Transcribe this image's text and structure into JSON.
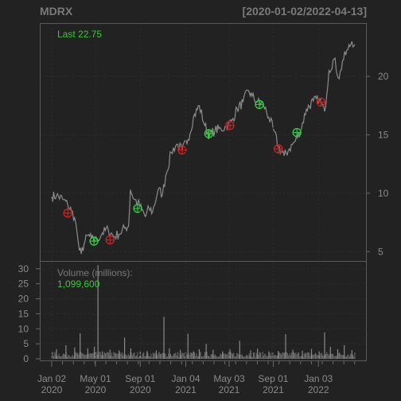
{
  "chart_data": {
    "type": "line",
    "symbol": "MDRX",
    "date_range": "[2020-01-02/2022-04-13]",
    "last_label": "Last 22.75",
    "volume_label": "Volume (millions):",
    "volume_last": "1,099,600",
    "price_axis": {
      "ticks": [
        5,
        10,
        15,
        20
      ],
      "range": [
        4.2,
        24.5
      ]
    },
    "volume_axis": {
      "ticks": [
        0,
        5,
        10,
        15,
        20,
        25,
        30
      ],
      "range": [
        0,
        31
      ]
    },
    "x_axis": {
      "start": "2020-01-02",
      "end": "2022-04-13",
      "ticks": [
        {
          "date": "2020-01-02",
          "line1": "Jan 02",
          "line2": "2020"
        },
        {
          "date": "2020-05-01",
          "line1": "May 01",
          "line2": "2020"
        },
        {
          "date": "2020-09-01",
          "line1": "Sep 01",
          "line2": "2020"
        },
        {
          "date": "2021-01-04",
          "line1": "Jan 04",
          "line2": "2021"
        },
        {
          "date": "2021-05-03",
          "line1": "May 03",
          "line2": "2021"
        },
        {
          "date": "2021-09-01",
          "line1": "Sep 01",
          "line2": "2021"
        },
        {
          "date": "2022-01-03",
          "line1": "Jan 03",
          "line2": "2022"
        }
      ]
    },
    "price_series": [
      [
        "2020-01-02",
        9.7
      ],
      [
        "2020-01-15",
        9.8
      ],
      [
        "2020-02-01",
        9.5
      ],
      [
        "2020-02-15",
        9.0
      ],
      [
        "2020-02-25",
        8.5
      ],
      [
        "2020-03-05",
        7.9
      ],
      [
        "2020-03-12",
        6.5
      ],
      [
        "2020-03-18",
        5.1
      ],
      [
        "2020-03-23",
        4.8
      ],
      [
        "2020-03-31",
        5.7
      ],
      [
        "2020-04-10",
        6.4
      ],
      [
        "2020-04-20",
        6.1
      ],
      [
        "2020-05-05",
        6.0
      ],
      [
        "2020-05-20",
        6.6
      ],
      [
        "2020-06-05",
        6.9
      ],
      [
        "2020-06-20",
        6.3
      ],
      [
        "2020-07-05",
        6.5
      ],
      [
        "2020-07-20",
        7.0
      ],
      [
        "2020-07-31",
        7.2
      ],
      [
        "2020-08-05",
        10.3
      ],
      [
        "2020-08-15",
        9.5
      ],
      [
        "2020-08-25",
        9.2
      ],
      [
        "2020-09-05",
        8.6
      ],
      [
        "2020-09-15",
        8.0
      ],
      [
        "2020-09-25",
        8.7
      ],
      [
        "2020-10-05",
        8.4
      ],
      [
        "2020-10-20",
        10.3
      ],
      [
        "2020-11-01",
        9.9
      ],
      [
        "2020-11-10",
        11.5
      ],
      [
        "2020-11-25",
        13.5
      ],
      [
        "2020-12-10",
        14.2
      ],
      [
        "2020-12-25",
        13.7
      ],
      [
        "2021-01-10",
        14.6
      ],
      [
        "2021-01-25",
        16.5
      ],
      [
        "2021-02-10",
        17.5
      ],
      [
        "2021-02-25",
        15.8
      ],
      [
        "2021-03-10",
        14.9
      ],
      [
        "2021-03-25",
        15.4
      ],
      [
        "2021-04-10",
        15.5
      ],
      [
        "2021-04-25",
        15.7
      ],
      [
        "2021-05-10",
        16.2
      ],
      [
        "2021-05-25",
        17.2
      ],
      [
        "2021-06-10",
        17.8
      ],
      [
        "2021-06-25",
        18.8
      ],
      [
        "2021-07-05",
        18.3
      ],
      [
        "2021-07-20",
        17.8
      ],
      [
        "2021-08-05",
        17.6
      ],
      [
        "2021-08-20",
        16.5
      ],
      [
        "2021-09-01",
        15.5
      ],
      [
        "2021-09-15",
        14.0
      ],
      [
        "2021-10-01",
        13.2
      ],
      [
        "2021-10-15",
        13.8
      ],
      [
        "2021-11-01",
        14.5
      ],
      [
        "2021-11-15",
        15.4
      ],
      [
        "2021-12-01",
        17.2
      ],
      [
        "2021-12-20",
        17.9
      ],
      [
        "2022-01-05",
        18.0
      ],
      [
        "2022-01-20",
        17.0
      ],
      [
        "2022-02-01",
        20.5
      ],
      [
        "2022-02-15",
        21.5
      ],
      [
        "2022-03-01",
        19.8
      ],
      [
        "2022-03-10",
        21.3
      ],
      [
        "2022-03-25",
        22.3
      ],
      [
        "2022-04-05",
        23.0
      ],
      [
        "2022-04-13",
        22.75
      ]
    ],
    "trade_markers": [
      {
        "date": "2020-02-15",
        "price": 8.3,
        "type": "sell"
      },
      {
        "date": "2020-04-27",
        "price": 5.9,
        "type": "buy"
      },
      {
        "date": "2020-06-10",
        "price": 6.0,
        "type": "sell"
      },
      {
        "date": "2020-08-25",
        "price": 8.7,
        "type": "buy"
      },
      {
        "date": "2020-12-25",
        "price": 13.7,
        "type": "sell"
      },
      {
        "date": "2021-03-08",
        "price": 15.1,
        "type": "buy"
      },
      {
        "date": "2021-05-05",
        "price": 15.8,
        "type": "sell"
      },
      {
        "date": "2021-07-25",
        "price": 17.6,
        "type": "buy"
      },
      {
        "date": "2021-09-15",
        "price": 13.8,
        "type": "sell"
      },
      {
        "date": "2021-11-05",
        "price": 15.2,
        "type": "buy"
      },
      {
        "date": "2022-01-10",
        "price": 17.8,
        "type": "sell"
      }
    ],
    "volume_series": [
      [
        "2020-01-15",
        3.2
      ],
      [
        "2020-02-10",
        4.5
      ],
      [
        "2020-03-05",
        3.8
      ],
      [
        "2020-03-20",
        8.5
      ],
      [
        "2020-04-10",
        3.5
      ],
      [
        "2020-04-28",
        4.0
      ],
      [
        "2020-05-08",
        31.2
      ],
      [
        "2020-05-20",
        2.5
      ],
      [
        "2020-06-10",
        3.0
      ],
      [
        "2020-07-05",
        2.8
      ],
      [
        "2020-07-20",
        7.1
      ],
      [
        "2020-08-06",
        3.5
      ],
      [
        "2020-09-01",
        2.4
      ],
      [
        "2020-09-20",
        2.6
      ],
      [
        "2020-10-15",
        2.8
      ],
      [
        "2020-11-05",
        14.0
      ],
      [
        "2020-11-20",
        3.5
      ],
      [
        "2020-12-20",
        3.0
      ],
      [
        "2021-01-10",
        8.4
      ],
      [
        "2021-01-25",
        2.5
      ],
      [
        "2021-02-10",
        3.2
      ],
      [
        "2021-03-01",
        5.0
      ],
      [
        "2021-03-20",
        3.0
      ],
      [
        "2021-04-15",
        2.5
      ],
      [
        "2021-05-05",
        3.2
      ],
      [
        "2021-06-01",
        6.0
      ],
      [
        "2021-07-01",
        2.8
      ],
      [
        "2021-07-20",
        3.4
      ],
      [
        "2021-08-20",
        2.5
      ],
      [
        "2021-09-15",
        2.6
      ],
      [
        "2021-10-05",
        8.2
      ],
      [
        "2021-10-25",
        3.0
      ],
      [
        "2021-11-20",
        2.7
      ],
      [
        "2021-12-15",
        3.3
      ],
      [
        "2022-01-05",
        2.5
      ],
      [
        "2022-01-20",
        8.8
      ],
      [
        "2022-02-05",
        4.0
      ],
      [
        "2022-02-25",
        3.2
      ],
      [
        "2022-03-15",
        4.5
      ],
      [
        "2022-04-05",
        2.9
      ]
    ]
  }
}
